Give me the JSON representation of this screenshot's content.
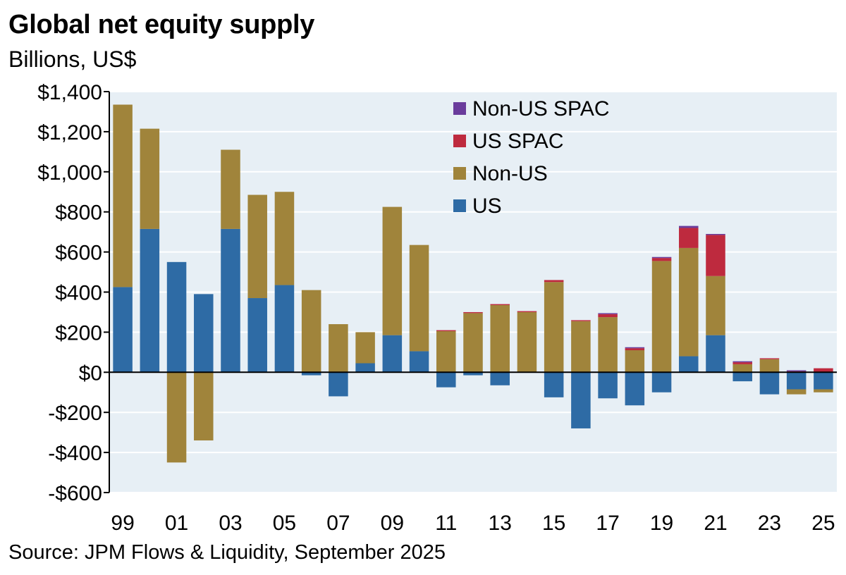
{
  "header": {
    "title": "Global net equity supply",
    "subtitle": "Billions, US$"
  },
  "footer": {
    "source": "Source: JPM Flows & Liquidity, September 2025"
  },
  "colors": {
    "plot_bg": "#e7eff5",
    "grid": "#ffffff",
    "axis": "#000000",
    "us": "#2e6ba5",
    "non_us": "#a0843b",
    "us_spac": "#be2a3e",
    "non_us_spac": "#6a3c9c"
  },
  "chart_data": {
    "type": "bar",
    "stacked": true,
    "title": "Global net equity supply",
    "subtitle": "Billions, US$",
    "ylim": [
      -600,
      1400
    ],
    "yticks": [
      1400,
      1200,
      1000,
      800,
      600,
      400,
      200,
      0,
      -200,
      -400,
      -600
    ],
    "ytick_labels": [
      "$1,400",
      "$1,200",
      "$1,000",
      "$800",
      "$600",
      "$400",
      "$200",
      "$0",
      "-$200",
      "-$400",
      "-$600"
    ],
    "grid": true,
    "legend_position": "top-center",
    "categories": [
      "1999",
      "2000",
      "2001",
      "2002",
      "2003",
      "2004",
      "2005",
      "2006",
      "2007",
      "2008",
      "2009",
      "2010",
      "2011",
      "2012",
      "2013",
      "2014",
      "2015",
      "2016",
      "2017",
      "2018",
      "2019",
      "2020",
      "2021",
      "2022",
      "2023",
      "2024",
      "2025"
    ],
    "x_tick_labels": [
      "99",
      "",
      "01",
      "",
      "03",
      "",
      "05",
      "",
      "07",
      "",
      "09",
      "",
      "11",
      "",
      "13",
      "",
      "15",
      "",
      "17",
      "",
      "19",
      "",
      "21",
      "",
      "23",
      "",
      "25"
    ],
    "series": [
      {
        "name": "US",
        "color": "#2e6ba5",
        "values": [
          425,
          715,
          550,
          390,
          715,
          370,
          435,
          -15,
          -120,
          45,
          185,
          105,
          -75,
          -15,
          -65,
          0,
          -125,
          -280,
          -130,
          -165,
          -100,
          80,
          185,
          -45,
          -110,
          -85,
          -85
        ]
      },
      {
        "name": "Non-US",
        "color": "#a0843b",
        "values": [
          910,
          500,
          -450,
          -340,
          395,
          515,
          465,
          410,
          240,
          155,
          640,
          530,
          205,
          295,
          335,
          300,
          450,
          255,
          275,
          110,
          555,
          540,
          295,
          40,
          65,
          -25,
          -15
        ]
      },
      {
        "name": "US SPAC",
        "color": "#be2a3e",
        "values": [
          0,
          0,
          0,
          0,
          0,
          0,
          0,
          0,
          0,
          0,
          0,
          0,
          5,
          5,
          5,
          5,
          10,
          5,
          15,
          10,
          15,
          100,
          205,
          10,
          5,
          5,
          20
        ]
      },
      {
        "name": "Non-US SPAC",
        "color": "#6a3c9c",
        "values": [
          0,
          0,
          0,
          0,
          0,
          0,
          0,
          0,
          0,
          0,
          0,
          0,
          0,
          0,
          0,
          0,
          0,
          0,
          5,
          5,
          5,
          10,
          5,
          5,
          0,
          5,
          0
        ]
      }
    ],
    "legend_order": [
      "Non-US SPAC",
      "US SPAC",
      "Non-US",
      "US"
    ],
    "source": "Source: JPM Flows & Liquidity, September 2025"
  }
}
